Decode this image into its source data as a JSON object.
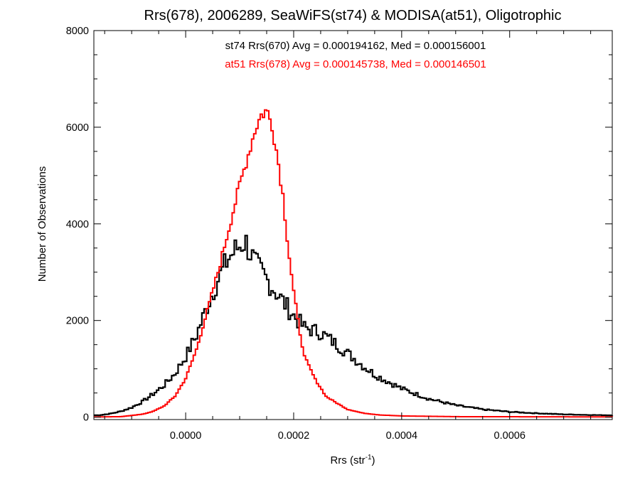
{
  "chart_data": {
    "type": "histogram",
    "title": "Rrs(678), 2006289, SeaWiFS(st74) & MODISA(at51), Oligotrophic",
    "xlabel": "Rrs (str",
    "xlabel_sup": "-1",
    "xlabel_suffix": ")",
    "ylabel": "Number of Observations",
    "xlim": [
      -0.00017,
      0.00079
    ],
    "ylim": [
      -50,
      8000
    ],
    "x_ticks": [
      0.0,
      0.0002,
      0.0004,
      0.0006
    ],
    "x_tick_labels": [
      "0.0000",
      "0.0002",
      "0.0004",
      "0.0006"
    ],
    "y_ticks": [
      0,
      2000,
      4000,
      6000,
      8000
    ],
    "y_tick_labels": [
      "0",
      "2000",
      "4000",
      "6000",
      "8000"
    ],
    "annotations": [
      {
        "text": "st74 Rrs(670) Avg = 0.000194162, Med = 0.000156001",
        "color": "#000000"
      },
      {
        "text": "at51 Rrs(678) Avg = 0.000145738, Med = 0.000146501",
        "color": "#ff0000"
      }
    ],
    "series": [
      {
        "color": "#000000",
        "bin_width": 4e-06,
        "x": [
          -0.00016,
          -0.00014,
          -0.00012,
          -0.0001,
          -8e-05,
          -6e-05,
          -4e-05,
          -2e-05,
          0.0,
          2e-05,
          4e-05,
          6e-05,
          8e-05,
          0.0001,
          0.00011,
          0.00012,
          0.00013,
          0.00014,
          0.00016,
          0.00018,
          0.0002,
          0.00022,
          0.00025,
          0.00028,
          0.0003,
          0.00033,
          0.00035,
          0.0004,
          0.00045,
          0.0005,
          0.00055,
          0.0006,
          0.00065,
          0.0007,
          0.00075,
          0.00078
        ],
        "values": [
          40,
          70,
          120,
          200,
          320,
          480,
          660,
          900,
          1250,
          1700,
          2300,
          2850,
          3300,
          3550,
          3650,
          3400,
          3150,
          3000,
          2700,
          2400,
          2100,
          1850,
          1750,
          1500,
          1320,
          1050,
          880,
          590,
          380,
          245,
          160,
          110,
          80,
          58,
          45,
          40
        ]
      },
      {
        "color": "#ff0000",
        "bin_width": 4e-06,
        "x": [
          -0.00016,
          -0.00012,
          -8e-05,
          -6e-05,
          -4e-05,
          -2e-05,
          0.0,
          2e-05,
          4e-05,
          6e-05,
          8e-05,
          0.0001,
          0.00012,
          0.00013,
          0.00014,
          0.00015,
          0.00016,
          0.00017,
          0.00018,
          0.00019,
          0.0002,
          0.00021,
          0.00022,
          0.00024,
          0.00026,
          0.00028,
          0.0003,
          0.00033,
          0.00036,
          0.0004,
          0.0005,
          0.00078
        ],
        "values": [
          5,
          10,
          60,
          120,
          230,
          430,
          800,
          1400,
          2200,
          3000,
          3900,
          4800,
          5600,
          6000,
          6250,
          6350,
          6050,
          5400,
          4600,
          3500,
          2600,
          1850,
          1250,
          780,
          430,
          290,
          160,
          80,
          45,
          25,
          10,
          5
        ]
      }
    ]
  }
}
